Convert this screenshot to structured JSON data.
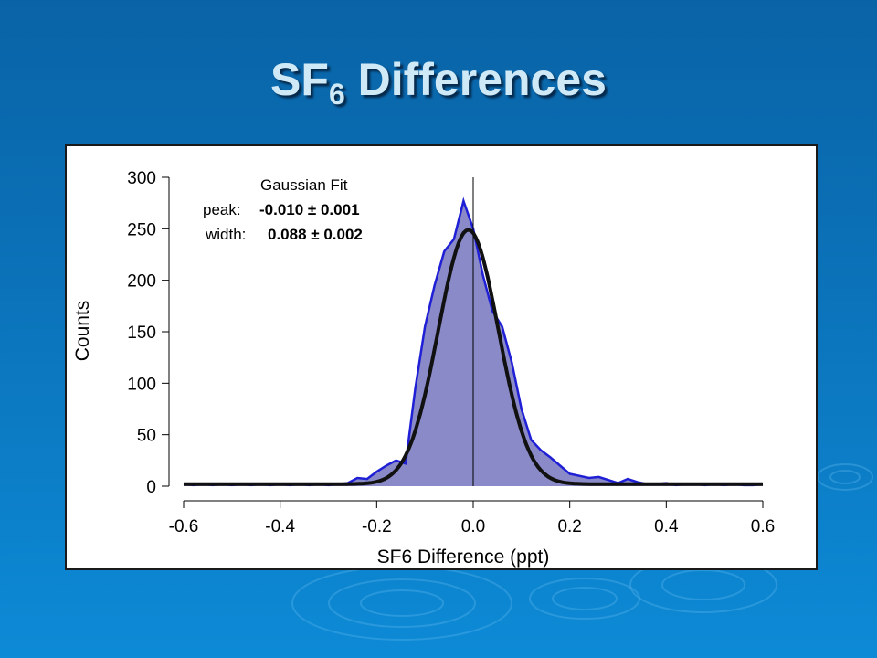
{
  "slide": {
    "title_main": "SF",
    "title_sub": "6",
    "title_rest": " Differences"
  },
  "chart_data": {
    "type": "area",
    "xlabel": "SF6 Difference (ppt)",
    "ylabel": "Counts",
    "xlim": [
      -0.6,
      0.6
    ],
    "ylim": [
      0,
      300
    ],
    "xticks": [
      "-0.6",
      "-0.4",
      "-0.2",
      "0.0",
      "0.2",
      "0.4",
      "0.6"
    ],
    "yticks": [
      "0",
      "50",
      "100",
      "150",
      "200",
      "250",
      "300"
    ],
    "xtick_values": [
      -0.6,
      -0.4,
      -0.2,
      0.0,
      0.2,
      0.4,
      0.6
    ],
    "ytick_values": [
      0,
      50,
      100,
      150,
      200,
      250,
      300
    ],
    "reference_line_x": 0.0,
    "annotation": {
      "heading": "Gaussian Fit",
      "peak_label": "peak:",
      "peak_value": "-0.010 ± 0.001",
      "width_label": "width:",
      "width_value": "0.088 ± 0.002"
    },
    "histogram": {
      "color": "#1f1fd6",
      "fill": "#8a8ac8",
      "x": [
        -0.6,
        -0.58,
        -0.56,
        -0.54,
        -0.52,
        -0.5,
        -0.48,
        -0.46,
        -0.44,
        -0.42,
        -0.4,
        -0.38,
        -0.36,
        -0.34,
        -0.32,
        -0.3,
        -0.28,
        -0.26,
        -0.24,
        -0.22,
        -0.2,
        -0.18,
        -0.16,
        -0.14,
        -0.12,
        -0.1,
        -0.08,
        -0.06,
        -0.04,
        -0.02,
        0.0,
        0.02,
        0.04,
        0.06,
        0.08,
        0.1,
        0.12,
        0.14,
        0.16,
        0.18,
        0.2,
        0.22,
        0.24,
        0.26,
        0.28,
        0.3,
        0.32,
        0.34,
        0.36,
        0.38,
        0.4,
        0.42,
        0.44,
        0.46,
        0.48,
        0.5,
        0.52,
        0.54,
        0.56,
        0.58,
        0.6
      ],
      "y": [
        2,
        1,
        2,
        1,
        2,
        1,
        2,
        1,
        2,
        1,
        2,
        1,
        2,
        1,
        2,
        1,
        2,
        3,
        8,
        7,
        14,
        20,
        25,
        22,
        95,
        155,
        195,
        228,
        240,
        277,
        250,
        205,
        170,
        155,
        120,
        75,
        45,
        35,
        28,
        20,
        12,
        10,
        8,
        9,
        6,
        3,
        7,
        4,
        2,
        2,
        3,
        1,
        2,
        2,
        1,
        2,
        1,
        2,
        1,
        1,
        2
      ]
    },
    "gaussian_fit": {
      "color": "#111111",
      "peak": -0.01,
      "width": 0.088,
      "amplitude": 247,
      "baseline": 2
    }
  }
}
